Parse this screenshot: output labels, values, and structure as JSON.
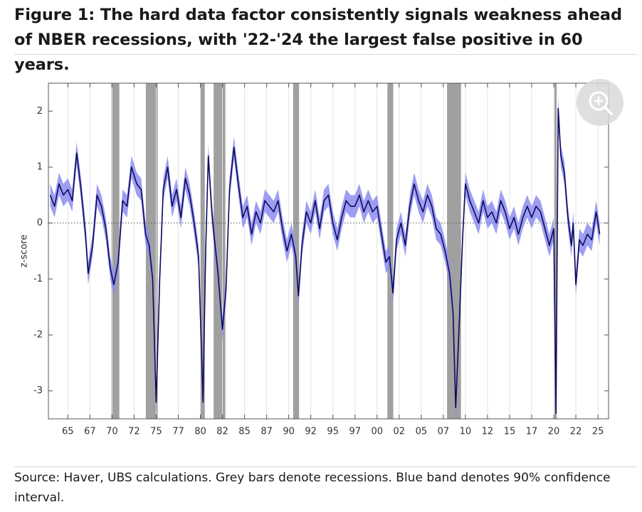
{
  "chart_data": {
    "type": "line",
    "title": "Figure 1: The hard data factor consistently signals weakness ahead of NBER recessions, with '22-'24 the largest false positive in 60 years.",
    "y_label": "z-score",
    "source": "Source: Haver, UBS calculations. Grey bars denote recessions. Blue band denotes 90% confidence interval.",
    "xlim": [
      1962.8,
      2026.2
    ],
    "ylim": [
      -3.5,
      2.5
    ],
    "yticks": [
      -3,
      -2,
      -1,
      0,
      1,
      2
    ],
    "xticks": [
      {
        "value": 1965,
        "label": "65"
      },
      {
        "value": 1967.5,
        "label": "67"
      },
      {
        "value": 1970,
        "label": "70"
      },
      {
        "value": 1972.5,
        "label": "72"
      },
      {
        "value": 1975,
        "label": "75"
      },
      {
        "value": 1977.5,
        "label": "77"
      },
      {
        "value": 1980,
        "label": "80"
      },
      {
        "value": 1982.5,
        "label": "82"
      },
      {
        "value": 1985,
        "label": "85"
      },
      {
        "value": 1987.5,
        "label": "87"
      },
      {
        "value": 1990,
        "label": "90"
      },
      {
        "value": 1992.5,
        "label": "92"
      },
      {
        "value": 1995,
        "label": "95"
      },
      {
        "value": 1997.5,
        "label": "97"
      },
      {
        "value": 2000,
        "label": "00"
      },
      {
        "value": 2002.5,
        "label": "02"
      },
      {
        "value": 2005,
        "label": "05"
      },
      {
        "value": 2007.5,
        "label": "07"
      },
      {
        "value": 2010,
        "label": "10"
      },
      {
        "value": 2012.5,
        "label": "12"
      },
      {
        "value": 2015,
        "label": "15"
      },
      {
        "value": 2017.5,
        "label": "17"
      },
      {
        "value": 2020,
        "label": "20"
      },
      {
        "value": 2022.5,
        "label": "22"
      },
      {
        "value": 2025,
        "label": "25"
      }
    ],
    "grid": true,
    "recession_color": "#a0a0a0",
    "recessions": [
      [
        1969.92,
        1970.83
      ],
      [
        1973.83,
        1975.17
      ],
      [
        1980.0,
        1980.5
      ],
      [
        1981.5,
        1982.83
      ],
      [
        1990.5,
        1991.17
      ],
      [
        2001.17,
        2001.83
      ],
      [
        2007.92,
        2009.5
      ],
      [
        2020.08,
        2020.33
      ]
    ],
    "x": [
      1963.0,
      1963.5,
      1964.0,
      1964.5,
      1965.0,
      1965.5,
      1966.0,
      1966.5,
      1967.0,
      1967.3,
      1967.8,
      1968.3,
      1968.8,
      1969.3,
      1969.8,
      1970.2,
      1970.7,
      1971.2,
      1971.7,
      1972.2,
      1972.8,
      1973.3,
      1973.8,
      1974.2,
      1974.6,
      1975.0,
      1975.4,
      1975.8,
      1976.3,
      1976.8,
      1977.3,
      1977.8,
      1978.3,
      1978.8,
      1979.3,
      1979.8,
      1980.3,
      1980.6,
      1980.9,
      1981.3,
      1981.6,
      1982.0,
      1982.5,
      1982.9,
      1983.3,
      1983.8,
      1984.3,
      1984.8,
      1985.3,
      1985.8,
      1986.3,
      1986.8,
      1987.3,
      1987.8,
      1988.3,
      1988.8,
      1989.3,
      1989.8,
      1990.3,
      1990.8,
      1991.1,
      1991.5,
      1992.0,
      1992.5,
      1993.0,
      1993.5,
      1994.0,
      1994.5,
      1995.0,
      1995.5,
      1996.0,
      1996.5,
      1997.0,
      1997.5,
      1998.0,
      1998.5,
      1999.0,
      1999.5,
      2000.0,
      2000.5,
      2001.0,
      2001.4,
      2001.8,
      2002.2,
      2002.7,
      2003.2,
      2003.7,
      2004.2,
      2004.7,
      2005.2,
      2005.7,
      2006.2,
      2006.7,
      2007.2,
      2007.7,
      2008.2,
      2008.6,
      2008.9,
      2009.3,
      2009.7,
      2010.0,
      2010.5,
      2011.0,
      2011.5,
      2012.0,
      2012.5,
      2013.0,
      2013.5,
      2014.0,
      2014.5,
      2015.0,
      2015.5,
      2016.0,
      2016.5,
      2017.0,
      2017.5,
      2018.0,
      2018.5,
      2019.0,
      2019.5,
      2020.0,
      2020.25,
      2020.5,
      2020.8,
      2021.2,
      2021.6,
      2022.0,
      2022.2,
      2022.5,
      2022.9,
      2023.3,
      2023.8,
      2024.3,
      2024.8,
      2025.2
    ],
    "series": [
      {
        "color": "#0a0a5e",
        "band_color": "#8c8cf0",
        "values": [
          0.5,
          0.3,
          0.7,
          0.5,
          0.6,
          0.4,
          1.25,
          0.6,
          -0.2,
          -0.9,
          -0.4,
          0.5,
          0.3,
          -0.1,
          -0.8,
          -1.1,
          -0.7,
          0.4,
          0.3,
          1.0,
          0.7,
          0.6,
          -0.2,
          -0.4,
          -1.0,
          -3.2,
          -1.0,
          0.6,
          1.0,
          0.3,
          0.6,
          0.1,
          0.8,
          0.5,
          0.0,
          -0.6,
          -3.2,
          -0.5,
          1.2,
          0.2,
          -0.3,
          -0.9,
          -1.9,
          -1.2,
          0.6,
          1.35,
          0.7,
          0.1,
          0.3,
          -0.2,
          0.2,
          0.0,
          0.4,
          0.3,
          0.2,
          0.4,
          -0.1,
          -0.5,
          -0.2,
          -0.6,
          -1.3,
          -0.4,
          0.2,
          0.0,
          0.4,
          -0.1,
          0.4,
          0.5,
          0.0,
          -0.3,
          0.1,
          0.4,
          0.3,
          0.3,
          0.5,
          0.2,
          0.4,
          0.2,
          0.3,
          -0.2,
          -0.7,
          -0.6,
          -1.25,
          -0.3,
          0.0,
          -0.4,
          0.3,
          0.7,
          0.4,
          0.2,
          0.5,
          0.3,
          -0.1,
          -0.2,
          -0.5,
          -0.9,
          -1.6,
          -3.3,
          -1.8,
          -0.2,
          0.7,
          0.4,
          0.2,
          0.0,
          0.4,
          0.1,
          0.2,
          0.0,
          0.4,
          0.2,
          -0.1,
          0.1,
          -0.2,
          0.1,
          0.3,
          0.1,
          0.3,
          0.2,
          -0.1,
          -0.4,
          -0.1,
          -3.4,
          2.05,
          1.2,
          0.9,
          0.1,
          -0.4,
          0.0,
          -1.1,
          -0.3,
          -0.4,
          -0.2,
          -0.3,
          0.2,
          -0.2
        ],
        "lower": [
          0.3,
          0.1,
          0.5,
          0.3,
          0.4,
          0.2,
          1.05,
          0.4,
          -0.4,
          -1.1,
          -0.6,
          0.3,
          0.1,
          -0.3,
          -1.0,
          -1.3,
          -0.9,
          0.2,
          0.1,
          0.8,
          0.5,
          0.4,
          -0.4,
          -0.6,
          -1.2,
          -3.4,
          -1.2,
          0.4,
          0.8,
          0.1,
          0.4,
          -0.1,
          0.6,
          0.3,
          -0.2,
          -0.8,
          -3.4,
          -0.7,
          1.0,
          0.0,
          -0.5,
          -1.1,
          -2.1,
          -1.4,
          0.4,
          1.15,
          0.5,
          -0.1,
          0.1,
          -0.4,
          0.0,
          -0.2,
          0.2,
          0.1,
          0.0,
          0.2,
          -0.3,
          -0.7,
          -0.4,
          -0.8,
          -1.5,
          -0.6,
          0.0,
          -0.2,
          0.2,
          -0.3,
          0.2,
          0.3,
          -0.2,
          -0.5,
          -0.1,
          0.2,
          0.1,
          0.1,
          0.3,
          0.0,
          0.2,
          0.0,
          0.1,
          -0.4,
          -0.9,
          -0.8,
          -1.45,
          -0.5,
          -0.2,
          -0.6,
          0.1,
          0.5,
          0.2,
          0.0,
          0.3,
          0.1,
          -0.3,
          -0.4,
          -0.7,
          -1.1,
          -1.8,
          -3.5,
          -2.0,
          -0.4,
          0.5,
          0.2,
          0.0,
          -0.2,
          0.2,
          -0.1,
          0.0,
          -0.2,
          0.2,
          0.0,
          -0.3,
          -0.1,
          -0.4,
          -0.1,
          0.1,
          -0.1,
          0.1,
          0.0,
          -0.3,
          -0.6,
          -0.3,
          -3.5,
          1.85,
          1.0,
          0.7,
          -0.1,
          -0.6,
          -0.2,
          -1.3,
          -0.5,
          -0.6,
          -0.4,
          -0.5,
          0.0,
          -0.4
        ],
        "upper": [
          0.7,
          0.5,
          0.9,
          0.7,
          0.8,
          0.6,
          1.45,
          0.8,
          0.0,
          -0.7,
          -0.2,
          0.7,
          0.5,
          0.1,
          -0.6,
          -0.9,
          -0.5,
          0.6,
          0.5,
          1.2,
          0.9,
          0.8,
          0.0,
          -0.2,
          -0.8,
          -3.0,
          -0.8,
          0.8,
          1.2,
          0.5,
          0.8,
          0.3,
          1.0,
          0.7,
          0.2,
          -0.4,
          -3.0,
          -0.3,
          1.4,
          0.4,
          -0.1,
          -0.7,
          -1.7,
          -1.0,
          0.8,
          1.55,
          0.9,
          0.3,
          0.5,
          0.0,
          0.4,
          0.2,
          0.6,
          0.5,
          0.4,
          0.6,
          0.1,
          -0.3,
          0.0,
          -0.4,
          -1.1,
          -0.2,
          0.4,
          0.2,
          0.6,
          0.1,
          0.6,
          0.7,
          0.2,
          -0.1,
          0.3,
          0.6,
          0.5,
          0.5,
          0.7,
          0.4,
          0.6,
          0.4,
          0.5,
          0.0,
          -0.5,
          -0.4,
          -1.05,
          -0.1,
          0.2,
          -0.2,
          0.5,
          0.9,
          0.6,
          0.4,
          0.7,
          0.5,
          0.1,
          0.0,
          -0.3,
          -0.7,
          -1.4,
          -3.1,
          -1.6,
          0.0,
          0.9,
          0.6,
          0.4,
          0.2,
          0.6,
          0.3,
          0.4,
          0.2,
          0.6,
          0.4,
          0.1,
          0.3,
          0.0,
          0.3,
          0.5,
          0.3,
          0.5,
          0.4,
          0.1,
          -0.2,
          0.1,
          -3.2,
          2.25,
          1.4,
          1.1,
          0.3,
          -0.2,
          0.2,
          -0.9,
          -0.1,
          -0.2,
          0.0,
          -0.1,
          0.4,
          0.0
        ]
      }
    ]
  }
}
